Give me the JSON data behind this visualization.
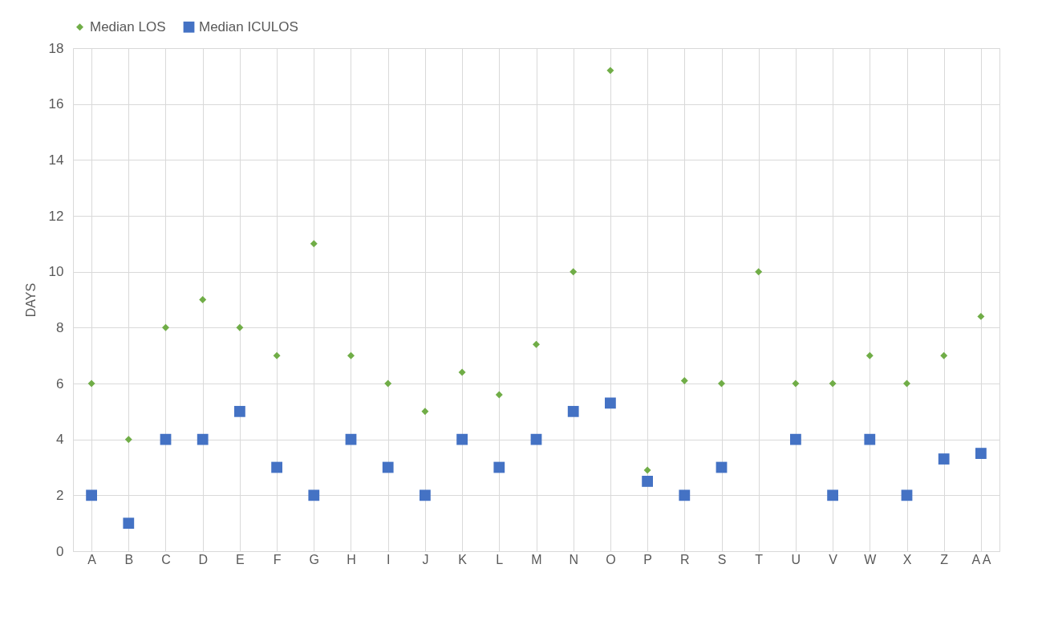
{
  "chart_data": {
    "type": "scatter",
    "ylabel": "DAYS",
    "categories": [
      "A",
      "B",
      "C",
      "D",
      "E",
      "F",
      "G",
      "H",
      "I",
      "J",
      "K",
      "L",
      "M",
      "N",
      "O",
      "P",
      "R",
      "S",
      "T",
      "U",
      "V",
      "W",
      "X",
      "Z",
      "A A"
    ],
    "series": [
      {
        "name": "Median LOS",
        "color": "#70ad47",
        "marker": "diamond",
        "values": [
          6,
          4,
          8,
          9,
          8,
          7,
          11,
          7,
          6,
          5,
          6.4,
          5.6,
          7.4,
          10,
          17.2,
          2.9,
          6.1,
          6,
          10,
          6,
          6,
          7,
          6,
          7,
          8.4
        ]
      },
      {
        "name": "Median ICULOS",
        "color": "#4472c4",
        "marker": "square",
        "values": [
          2,
          1,
          4,
          4,
          5,
          3,
          2,
          4,
          3,
          2,
          4,
          3,
          4,
          5,
          5.3,
          2.5,
          2,
          3,
          null,
          4,
          2,
          4,
          2,
          3.3,
          3.5
        ]
      }
    ],
    "ylim": [
      0,
      18
    ],
    "yticks": [
      0,
      2,
      4,
      6,
      8,
      10,
      12,
      14,
      16,
      18
    ],
    "grid": true,
    "legend": "top"
  }
}
